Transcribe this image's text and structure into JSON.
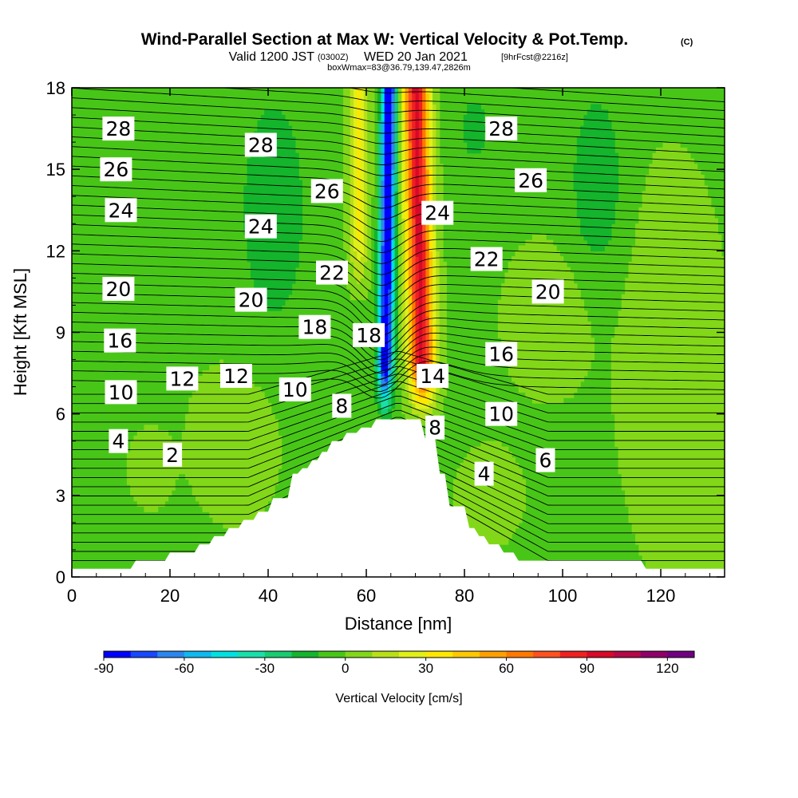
{
  "chart_data": {
    "type": "heatmap",
    "title": "Wind-Parallel Section at Max W: Vertical Velocity & Pot.Temp.",
    "title_mark": "(C)",
    "subtitle_valid": "Valid 1200 JST",
    "subtitle_z": "(0300Z)",
    "subtitle_date": "WED 20 Jan 2021",
    "subtitle_fcst": "[9hrFcst@2216z]",
    "subtitle_box": "boxWmax=83@36.79,139.47,2826m",
    "xlabel": "Distance [nm]",
    "ylabel": "Height [Kft MSL]",
    "xlim": [
      0,
      133
    ],
    "ylim": [
      0,
      18
    ],
    "x_ticks": [
      "0",
      "20",
      "40",
      "60",
      "80",
      "100",
      "120"
    ],
    "y_ticks": [
      "0",
      "3",
      "6",
      "9",
      "12",
      "15",
      "18"
    ],
    "colorbar": {
      "label": "Vertical Velocity [cm/s]",
      "min": -90,
      "max": 130,
      "ticks": [
        "-90",
        "-60",
        "-30",
        "0",
        "30",
        "60",
        "90",
        "120"
      ],
      "colors": [
        "#0000ff",
        "#1848ff",
        "#2c86f0",
        "#10b8f0",
        "#00e0e0",
        "#18e0a8",
        "#18cc70",
        "#14b42c",
        "#48c618",
        "#82d818",
        "#b8e018",
        "#e0f018",
        "#ffe800",
        "#ffc800",
        "#ffa000",
        "#ff7800",
        "#ff5020",
        "#f02020",
        "#d80828",
        "#b40848",
        "#900068",
        "#700080"
      ]
    },
    "terrain": [
      [
        0,
        0.3
      ],
      [
        12,
        0.3
      ],
      [
        13,
        0.6
      ],
      [
        19,
        0.6
      ],
      [
        20,
        0.9
      ],
      [
        25,
        0.9
      ],
      [
        26,
        1.2
      ],
      [
        28,
        1.2
      ],
      [
        29,
        1.5
      ],
      [
        31,
        1.5
      ],
      [
        32,
        1.8
      ],
      [
        34,
        1.8
      ],
      [
        35,
        2.1
      ],
      [
        37,
        2.1
      ],
      [
        38,
        2.4
      ],
      [
        40,
        2.4
      ],
      [
        41,
        2.9
      ],
      [
        44,
        2.9
      ],
      [
        45,
        3.8
      ],
      [
        46,
        3.8
      ],
      [
        47,
        4.0
      ],
      [
        48,
        4.0
      ],
      [
        49,
        4.3
      ],
      [
        50,
        4.3
      ],
      [
        51,
        4.6
      ],
      [
        52,
        4.6
      ],
      [
        53,
        5.0
      ],
      [
        55,
        5.0
      ],
      [
        56,
        5.3
      ],
      [
        58,
        5.3
      ],
      [
        59,
        5.5
      ],
      [
        61,
        5.5
      ],
      [
        62,
        5.8
      ],
      [
        71,
        5.8
      ],
      [
        72,
        5.1
      ],
      [
        74,
        5.1
      ],
      [
        75,
        3.8
      ],
      [
        76,
        3.8
      ],
      [
        77,
        2.6
      ],
      [
        80,
        2.6
      ],
      [
        81,
        1.8
      ],
      [
        82,
        1.8
      ],
      [
        83,
        1.5
      ],
      [
        84,
        1.5
      ],
      [
        85,
        1.2
      ],
      [
        87,
        1.2
      ],
      [
        88,
        0.9
      ],
      [
        90,
        0.9
      ],
      [
        91,
        0.6
      ],
      [
        116,
        0.6
      ],
      [
        117,
        0.3
      ],
      [
        133,
        0.3
      ]
    ],
    "theta_labels": [
      {
        "text": "28",
        "x": 9.5,
        "y": 16.5
      },
      {
        "text": "26",
        "x": 9.0,
        "y": 15.0
      },
      {
        "text": "24",
        "x": 10.0,
        "y": 13.5
      },
      {
        "text": "20",
        "x": 9.5,
        "y": 10.6
      },
      {
        "text": "16",
        "x": 9.8,
        "y": 8.7
      },
      {
        "text": "10",
        "x": 10.0,
        "y": 6.8
      },
      {
        "text": "4",
        "x": 9.5,
        "y": 5.0
      },
      {
        "text": "12",
        "x": 22.5,
        "y": 7.3
      },
      {
        "text": "2",
        "x": 20.5,
        "y": 4.5
      },
      {
        "text": "12",
        "x": 33.5,
        "y": 7.4
      },
      {
        "text": "28",
        "x": 38.5,
        "y": 15.9
      },
      {
        "text": "24",
        "x": 38.5,
        "y": 12.9
      },
      {
        "text": "20",
        "x": 36.5,
        "y": 10.2
      },
      {
        "text": "10",
        "x": 45.5,
        "y": 6.9
      },
      {
        "text": "26",
        "x": 52.0,
        "y": 14.2
      },
      {
        "text": "22",
        "x": 53.0,
        "y": 11.2
      },
      {
        "text": "18",
        "x": 49.5,
        "y": 9.2
      },
      {
        "text": "8",
        "x": 55.0,
        "y": 6.3
      },
      {
        "text": "18",
        "x": 60.5,
        "y": 8.9
      },
      {
        "text": "24",
        "x": 74.5,
        "y": 13.4
      },
      {
        "text": "14",
        "x": 73.5,
        "y": 7.4
      },
      {
        "text": "8",
        "x": 74.0,
        "y": 5.5
      },
      {
        "text": "28",
        "x": 87.5,
        "y": 16.5
      },
      {
        "text": "26",
        "x": 93.5,
        "y": 14.6
      },
      {
        "text": "22",
        "x": 84.5,
        "y": 11.7
      },
      {
        "text": "20",
        "x": 97.0,
        "y": 10.5
      },
      {
        "text": "16",
        "x": 87.5,
        "y": 8.2
      },
      {
        "text": "10",
        "x": 87.5,
        "y": 6.0
      },
      {
        "text": "6",
        "x": 96.5,
        "y": 4.3
      },
      {
        "text": "4",
        "x": 84.0,
        "y": 3.8
      }
    ]
  }
}
